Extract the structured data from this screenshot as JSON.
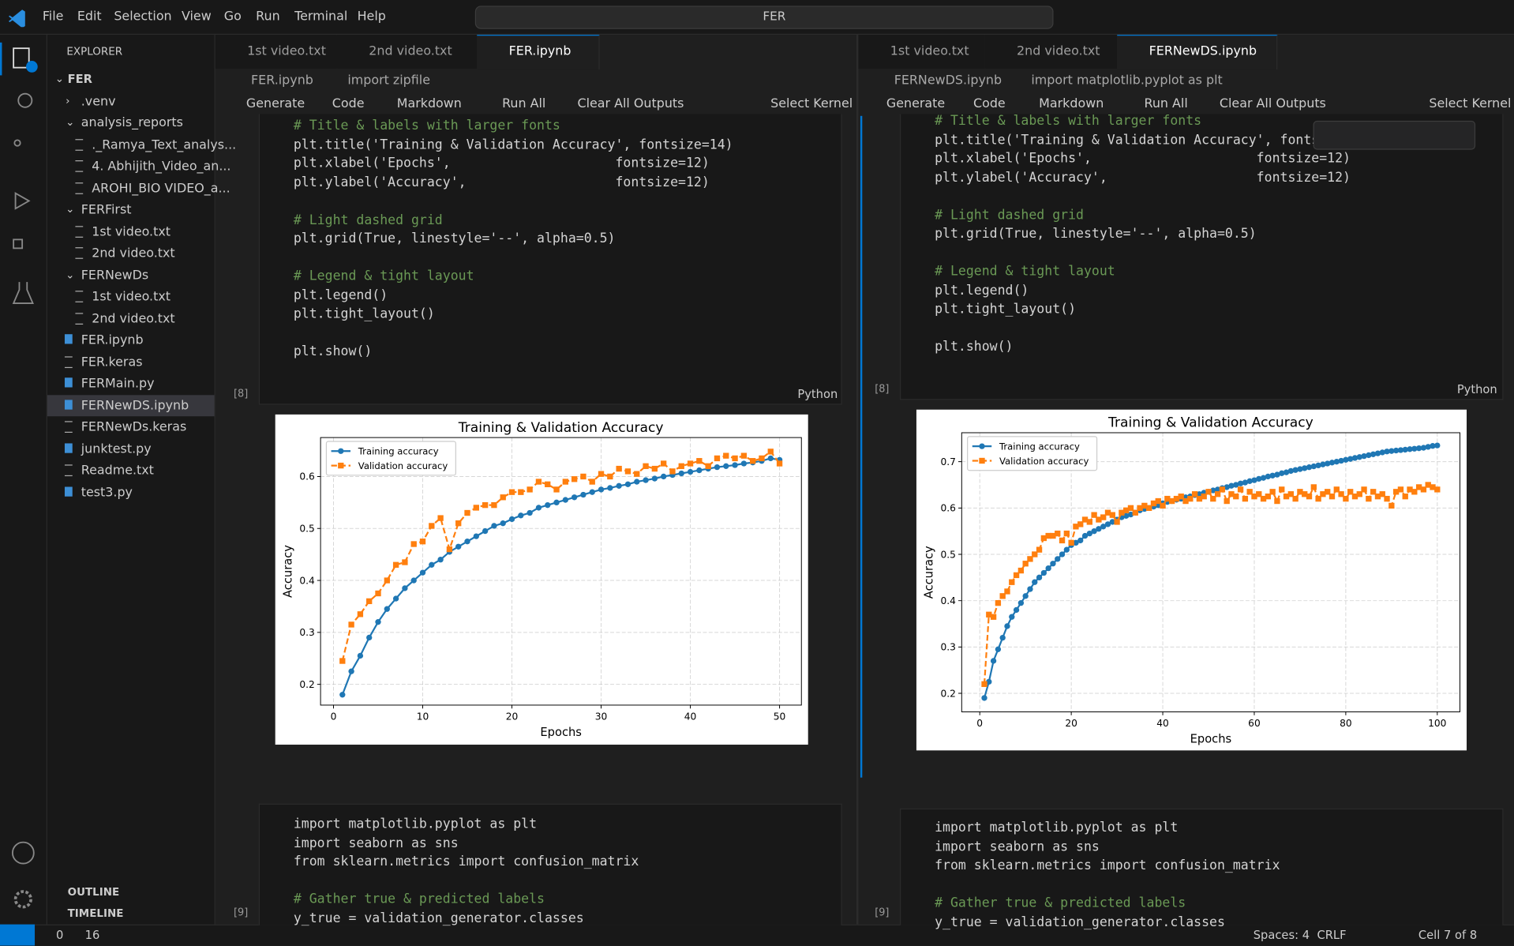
{
  "menu": [
    "File",
    "Edit",
    "Selection",
    "View",
    "Go",
    "Run",
    "Terminal",
    "Help"
  ],
  "search": "FER",
  "explorer": {
    "title": "EXPLORER",
    "root": {
      "label": "FER",
      "children": [
        {
          "label": ".venv",
          "collapsed": true
        },
        {
          "label": "analysis_reports",
          "children": [
            {
              "label": "._Ramya_Text_analys..."
            },
            {
              "label": "4. Abhijith_Video_an..."
            },
            {
              "label": "AROHI_BIO VIDEO_a..."
            }
          ]
        },
        {
          "label": "FERFirst",
          "children": [
            {
              "label": "1st video.txt"
            },
            {
              "label": "2nd video.txt"
            }
          ]
        },
        {
          "label": "FERNewDs",
          "children": [
            {
              "label": "1st video.txt"
            },
            {
              "label": "2nd video.txt"
            }
          ]
        },
        {
          "label": "FER.ipynb"
        },
        {
          "label": "FER.keras"
        },
        {
          "label": "FERMain.py"
        },
        {
          "label": "FERNewDS.ipynb",
          "selected": true
        },
        {
          "label": "FERNewDs.keras"
        },
        {
          "label": "junktest.py"
        },
        {
          "label": "Readme.txt"
        },
        {
          "label": "test3.py"
        }
      ]
    },
    "sections": [
      "OUTLINE",
      "TIMELINE"
    ]
  },
  "editors": [
    {
      "tabs": [
        "1st video.txt",
        "2nd video.txt",
        "FER.ipynb"
      ],
      "breadcrumbs": [
        "FER.ipynb",
        "import zipfile"
      ],
      "toolbar": [
        "Generate",
        "Code",
        "Markdown",
        "Run All",
        "Clear All Outputs",
        "Select Kernel"
      ],
      "cells": [
        {
          "label": "[8]",
          "language": "Python",
          "code": [
            [
              "# Title & labels with larger fonts",
              "plt.title('Training & Validation Accuracy', fontsize=14)",
              "plt.xlabel('Epochs',                     fontsize=12)",
              "plt.ylabel('Accuracy',                   fontsize=12)"
            ],
            [
              "# Light dashed grid",
              "plt.grid(True, linestyle='--', alpha=0.5)"
            ],
            [
              "# Legend & tight layout",
              "plt.legend()",
              "plt.tight_layout()"
            ],
            [
              "plt.show()"
            ]
          ]
        },
        {
          "label": "[9]",
          "code": [
            [
              "import matplotlib.pyplot as plt",
              "import seaborn as sns",
              "from sklearn.metrics import confusion_matrix"
            ],
            [
              "# Gather true & predicted labels",
              "y_true = validation_generator.classes"
            ]
          ]
        }
      ]
    },
    {
      "tabs": [
        "1st video.txt",
        "2nd video.txt",
        "FERNewDS.ipynb"
      ],
      "breadcrumbs": [
        "FERNewDS.ipynb",
        "import matplotlib.pyplot as plt"
      ],
      "toolbar": [
        "Generate",
        "Code",
        "Markdown",
        "Run All",
        "Clear All Outputs",
        "Select Kernel"
      ],
      "cells": [
        {
          "label": "[8]",
          "language": "Python",
          "code": [
            [
              "# Title & labels with larger fonts",
              "plt.title('Training & Validation Accuracy', fontsi",
              "plt.xlabel('Epochs',                     fontsize=12)",
              "plt.ylabel('Accuracy',                   fontsize=12)"
            ],
            [
              "# Light dashed grid",
              "plt.grid(True, linestyle='--', alpha=0.5)"
            ],
            [
              "# Legend & tight layout",
              "plt.legend()",
              "plt.tight_layout()"
            ],
            [
              "plt.show()"
            ]
          ]
        },
        {
          "label": "[9]",
          "code": [
            [
              "import matplotlib.pyplot as plt",
              "import seaborn as sns",
              "from sklearn.metrics import confusion_matrix"
            ],
            [
              "# Gather true & predicted labels",
              "y_true = validation_generator.classes"
            ]
          ]
        }
      ]
    }
  ],
  "status": {
    "errors": 0,
    "warnings": 16,
    "spaces": "Spaces: 4",
    "eol": "CRLF",
    "cell": "Cell 7 of 8"
  },
  "chart_data": [
    {
      "type": "line",
      "title": "Training & Validation Accuracy",
      "xlabel": "Epochs",
      "ylabel": "Accuracy",
      "grid": true,
      "legend": "upper left",
      "xlim": [
        -1.45,
        52.45
      ],
      "ylim": [
        0.16,
        0.675
      ],
      "xticks": [
        0,
        10,
        20,
        30,
        40,
        50
      ],
      "yticks": [
        0.2,
        0.3,
        0.4,
        0.5,
        0.6
      ],
      "x": [
        1,
        2,
        3,
        4,
        5,
        6,
        7,
        8,
        9,
        10,
        11,
        12,
        13,
        14,
        15,
        16,
        17,
        18,
        19,
        20,
        21,
        22,
        23,
        24,
        25,
        26,
        27,
        28,
        29,
        30,
        31,
        32,
        33,
        34,
        35,
        36,
        37,
        38,
        39,
        40,
        41,
        42,
        43,
        44,
        45,
        46,
        47,
        48,
        49,
        50
      ],
      "series": [
        {
          "name": "Training accuracy",
          "color": "#1f77b4",
          "marker": "o",
          "linestyle": "-",
          "values": [
            0.18,
            0.225,
            0.255,
            0.29,
            0.32,
            0.345,
            0.365,
            0.385,
            0.4,
            0.415,
            0.43,
            0.44,
            0.455,
            0.465,
            0.475,
            0.485,
            0.495,
            0.505,
            0.51,
            0.518,
            0.525,
            0.53,
            0.54,
            0.545,
            0.55,
            0.555,
            0.56,
            0.565,
            0.57,
            0.575,
            0.578,
            0.582,
            0.585,
            0.59,
            0.593,
            0.596,
            0.6,
            0.603,
            0.606,
            0.609,
            0.612,
            0.615,
            0.618,
            0.62,
            0.622,
            0.625,
            0.627,
            0.63,
            0.635,
            0.632
          ]
        },
        {
          "name": "Validation accuracy",
          "color": "#ff7f0e",
          "marker": "s",
          "linestyle": "--",
          "values": [
            0.245,
            0.315,
            0.335,
            0.36,
            0.375,
            0.4,
            0.43,
            0.435,
            0.47,
            0.475,
            0.505,
            0.52,
            0.46,
            0.51,
            0.53,
            0.54,
            0.545,
            0.545,
            0.56,
            0.57,
            0.57,
            0.575,
            0.59,
            0.585,
            0.575,
            0.59,
            0.595,
            0.6,
            0.59,
            0.605,
            0.6,
            0.615,
            0.61,
            0.605,
            0.62,
            0.615,
            0.625,
            0.61,
            0.62,
            0.625,
            0.63,
            0.62,
            0.635,
            0.64,
            0.635,
            0.64,
            0.63,
            0.635,
            0.648,
            0.625
          ]
        }
      ]
    },
    {
      "type": "line",
      "title": "Training & Validation Accuracy",
      "xlabel": "Epochs",
      "ylabel": "Accuracy",
      "grid": true,
      "legend": "upper left",
      "xlim": [
        -3.95,
        104.95
      ],
      "ylim": [
        0.16,
        0.7625
      ],
      "xticks": [
        0,
        20,
        40,
        60,
        80,
        100
      ],
      "yticks": [
        0.2,
        0.3,
        0.4,
        0.5,
        0.6,
        0.7
      ],
      "x": [
        1,
        2,
        3,
        4,
        5,
        6,
        7,
        8,
        9,
        10,
        11,
        12,
        13,
        14,
        15,
        16,
        17,
        18,
        19,
        20,
        21,
        22,
        23,
        24,
        25,
        26,
        27,
        28,
        29,
        30,
        31,
        32,
        33,
        34,
        35,
        36,
        37,
        38,
        39,
        40,
        41,
        42,
        43,
        44,
        45,
        46,
        47,
        48,
        49,
        50,
        51,
        52,
        53,
        54,
        55,
        56,
        57,
        58,
        59,
        60,
        61,
        62,
        63,
        64,
        65,
        66,
        67,
        68,
        69,
        70,
        71,
        72,
        73,
        74,
        75,
        76,
        77,
        78,
        79,
        80,
        81,
        82,
        83,
        84,
        85,
        86,
        87,
        88,
        89,
        90,
        91,
        92,
        93,
        94,
        95,
        96,
        97,
        98,
        99,
        100
      ],
      "series": [
        {
          "name": "Training accuracy",
          "color": "#1f77b4",
          "marker": "o",
          "linestyle": "-",
          "values": [
            0.19,
            0.225,
            0.27,
            0.295,
            0.32,
            0.345,
            0.365,
            0.38,
            0.395,
            0.41,
            0.425,
            0.44,
            0.45,
            0.46,
            0.47,
            0.48,
            0.49,
            0.5,
            0.51,
            0.52,
            0.525,
            0.53,
            0.54,
            0.545,
            0.55,
            0.555,
            0.56,
            0.565,
            0.57,
            0.575,
            0.58,
            0.583,
            0.586,
            0.59,
            0.595,
            0.598,
            0.6,
            0.603,
            0.606,
            0.61,
            0.613,
            0.615,
            0.618,
            0.62,
            0.623,
            0.625,
            0.628,
            0.63,
            0.633,
            0.635,
            0.638,
            0.64,
            0.643,
            0.645,
            0.648,
            0.65,
            0.653,
            0.655,
            0.658,
            0.66,
            0.663,
            0.665,
            0.668,
            0.67,
            0.672,
            0.675,
            0.677,
            0.68,
            0.682,
            0.684,
            0.686,
            0.688,
            0.69,
            0.692,
            0.694,
            0.696,
            0.698,
            0.7,
            0.702,
            0.704,
            0.706,
            0.708,
            0.71,
            0.712,
            0.714,
            0.716,
            0.718,
            0.72,
            0.722,
            0.723,
            0.724,
            0.725,
            0.726,
            0.727,
            0.728,
            0.729,
            0.73,
            0.732,
            0.734,
            0.735
          ]
        },
        {
          "name": "Validation accuracy",
          "color": "#ff7f0e",
          "marker": "s",
          "linestyle": "--",
          "values": [
            0.22,
            0.37,
            0.365,
            0.395,
            0.41,
            0.42,
            0.44,
            0.455,
            0.465,
            0.48,
            0.49,
            0.5,
            0.51,
            0.535,
            0.54,
            0.54,
            0.545,
            0.53,
            0.545,
            0.525,
            0.56,
            0.565,
            0.575,
            0.57,
            0.585,
            0.575,
            0.58,
            0.59,
            0.585,
            0.57,
            0.59,
            0.595,
            0.6,
            0.59,
            0.6,
            0.605,
            0.6,
            0.61,
            0.615,
            0.605,
            0.62,
            0.615,
            0.62,
            0.625,
            0.615,
            0.62,
            0.63,
            0.62,
            0.625,
            0.635,
            0.62,
            0.63,
            0.64,
            0.615,
            0.63,
            0.625,
            0.64,
            0.62,
            0.635,
            0.625,
            0.63,
            0.62,
            0.625,
            0.635,
            0.615,
            0.64,
            0.625,
            0.63,
            0.62,
            0.635,
            0.63,
            0.625,
            0.645,
            0.62,
            0.63,
            0.635,
            0.625,
            0.64,
            0.63,
            0.62,
            0.635,
            0.625,
            0.63,
            0.64,
            0.62,
            0.635,
            0.625,
            0.63,
            0.62,
            0.605,
            0.635,
            0.64,
            0.625,
            0.64,
            0.635,
            0.645,
            0.64,
            0.65,
            0.645,
            0.64
          ]
        }
      ]
    }
  ]
}
